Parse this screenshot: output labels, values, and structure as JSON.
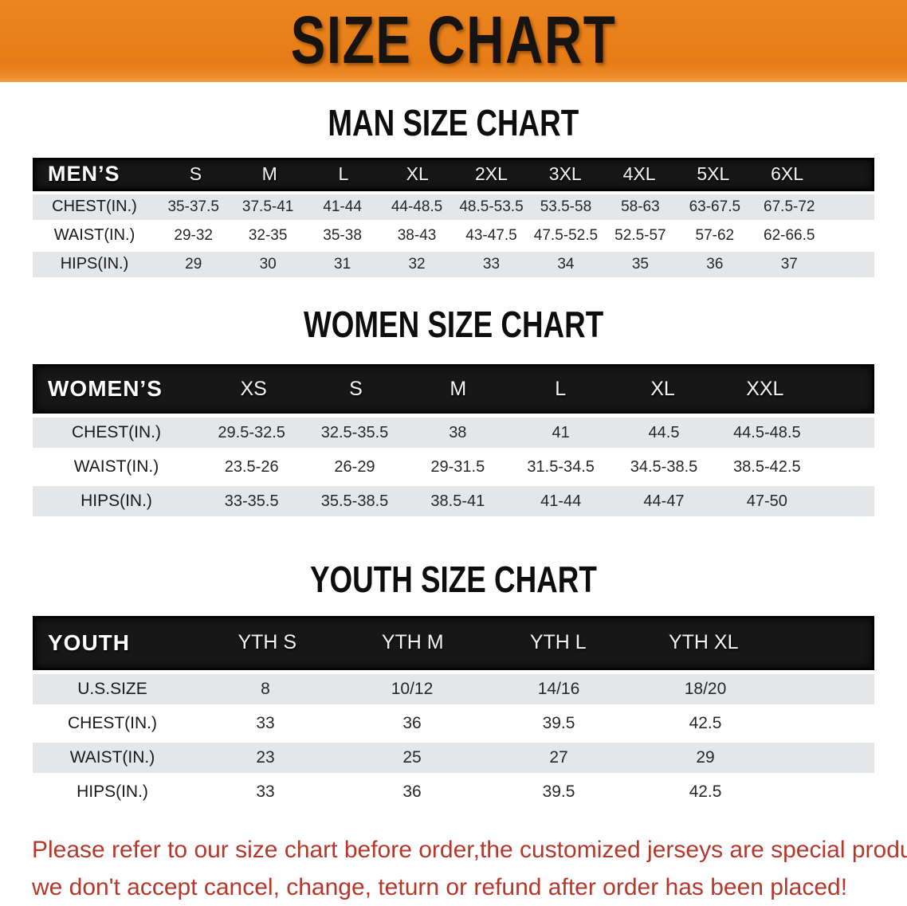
{
  "banner": {
    "title": "SIZE CHART",
    "background_color": "#e67c15",
    "text_color": "#171310"
  },
  "sections": [
    {
      "id": "men",
      "title": "MAN SIZE CHART",
      "header_label": "MEN’S",
      "columns": [
        "S",
        "M",
        "L",
        "XL",
        "2XL",
        "3XL",
        "4XL",
        "5XL",
        "6XL"
      ],
      "rows": [
        {
          "label": "CHEST(IN.)",
          "shaded": true,
          "values": [
            "35-37.5",
            "37.5-41",
            "41-44",
            "44-48.5",
            "48.5-53.5",
            "53.5-58",
            "58-63",
            "63-67.5",
            "67.5-72"
          ]
        },
        {
          "label": "WAIST(IN.)",
          "shaded": false,
          "values": [
            "29-32",
            "32-35",
            "35-38",
            "38-43",
            "43-47.5",
            "47.5-52.5",
            "52.5-57",
            "57-62",
            "62-66.5"
          ]
        },
        {
          "label": "HIPS(IN.)",
          "shaded": true,
          "values": [
            "29",
            "30",
            "31",
            "32",
            "33",
            "34",
            "35",
            "36",
            "37"
          ]
        }
      ]
    },
    {
      "id": "women",
      "title": "WOMEN SIZE CHART",
      "header_label": "WOMEN’S",
      "columns": [
        "XS",
        "S",
        "M",
        "L",
        "XL",
        "XXL"
      ],
      "rows": [
        {
          "label": "CHEST(IN.)",
          "shaded": true,
          "values": [
            "29.5-32.5",
            "32.5-35.5",
            "38",
            "41",
            "44.5",
            "44.5-48.5"
          ]
        },
        {
          "label": "WAIST(IN.)",
          "shaded": false,
          "values": [
            "23.5-26",
            "26-29",
            "29-31.5",
            "31.5-34.5",
            "34.5-38.5",
            "38.5-42.5"
          ]
        },
        {
          "label": "HIPS(IN.)",
          "shaded": true,
          "values": [
            "33-35.5",
            "35.5-38.5",
            "38.5-41",
            "41-44",
            "44-47",
            "47-50"
          ]
        }
      ]
    },
    {
      "id": "youth",
      "title": "YOUTH SIZE CHART",
      "header_label": "YOUTH",
      "columns": [
        "YTH S",
        "YTH M",
        "YTH L",
        "YTH XL"
      ],
      "rows": [
        {
          "label": "U.S.SIZE",
          "shaded": true,
          "values": [
            "8",
            "10/12",
            "14/16",
            "18/20"
          ]
        },
        {
          "label": "CHEST(IN.)",
          "shaded": false,
          "values": [
            "33",
            "36",
            "39.5",
            "42.5"
          ]
        },
        {
          "label": "WAIST(IN.)",
          "shaded": true,
          "values": [
            "23",
            "25",
            "27",
            "29"
          ]
        },
        {
          "label": "HIPS(IN.)",
          "shaded": false,
          "values": [
            "33",
            "36",
            "39.5",
            "42.5"
          ]
        }
      ]
    }
  ],
  "footer": {
    "line1": "Please refer to our size chart before order,the customized jerseys are special products,",
    "line2": "we don't accept cancel, change, teturn or refund after order has been placed!",
    "text_color": "#b5382c"
  },
  "colors": {
    "header_bar": "#171717",
    "shaded_row": "#e5e6e7",
    "banner_orange": "#e67c15"
  }
}
